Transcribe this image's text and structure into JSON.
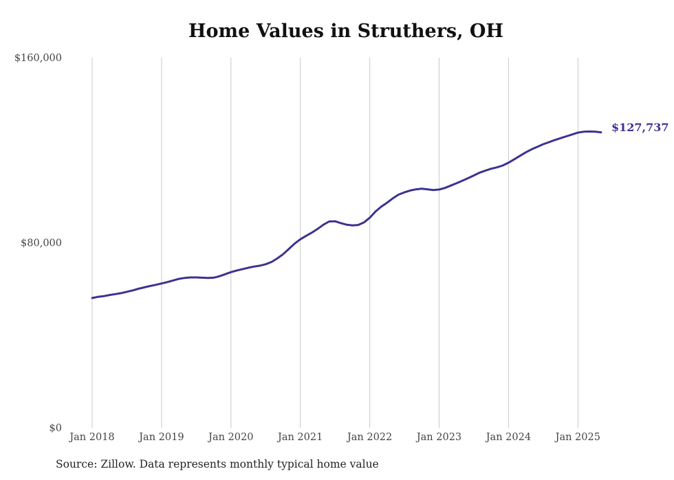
{
  "title": "Home Values in Struthers, OH",
  "source": "Source: Zillow. Data represents monthly typical home value",
  "colors": {
    "line": "#3b3291",
    "grid": "#c8c8c8",
    "text": "#444444"
  },
  "chart_data": {
    "type": "line",
    "title": "Home Values in Struthers, OH",
    "xlabel": "",
    "ylabel": "",
    "ylim": [
      0,
      160000
    ],
    "xlim": [
      "2018-01",
      "2025-05"
    ],
    "yticks": [
      "$0",
      "$80,000",
      "$160,000"
    ],
    "xticks": [
      "Jan 2018",
      "Jan 2019",
      "Jan 2020",
      "Jan 2021",
      "Jan 2022",
      "Jan 2023",
      "Jan 2024",
      "Jan 2025"
    ],
    "grid": "vertical",
    "end_label": "$127,737",
    "series": [
      {
        "x": [
          "2018-01",
          "2018-02",
          "2018-03",
          "2018-04",
          "2018-05",
          "2018-06",
          "2018-07",
          "2018-08",
          "2018-09",
          "2018-10",
          "2018-11",
          "2018-12",
          "2019-01",
          "2019-02",
          "2019-03",
          "2019-04",
          "2019-05",
          "2019-06",
          "2019-07",
          "2019-08",
          "2019-09",
          "2019-10",
          "2019-11",
          "2019-12",
          "2020-01",
          "2020-02",
          "2020-03",
          "2020-04",
          "2020-05",
          "2020-06",
          "2020-07",
          "2020-08",
          "2020-09",
          "2020-10",
          "2020-11",
          "2020-12",
          "2021-01",
          "2021-02",
          "2021-03",
          "2021-04",
          "2021-05",
          "2021-06",
          "2021-07",
          "2021-08",
          "2021-09",
          "2021-10",
          "2021-11",
          "2021-12",
          "2022-01",
          "2022-02",
          "2022-03",
          "2022-04",
          "2022-05",
          "2022-06",
          "2022-07",
          "2022-08",
          "2022-09",
          "2022-10",
          "2022-11",
          "2022-12",
          "2023-01",
          "2023-02",
          "2023-03",
          "2023-04",
          "2023-05",
          "2023-06",
          "2023-07",
          "2023-08",
          "2023-09",
          "2023-10",
          "2023-11",
          "2023-12",
          "2024-01",
          "2024-02",
          "2024-03",
          "2024-04",
          "2024-05",
          "2024-06",
          "2024-07",
          "2024-08",
          "2024-09",
          "2024-10",
          "2024-11",
          "2024-12",
          "2025-01",
          "2025-02",
          "2025-03",
          "2025-04",
          "2025-05"
        ],
        "y": [
          56100,
          56600,
          56900,
          57400,
          57800,
          58200,
          58800,
          59400,
          60100,
          60700,
          61300,
          61800,
          62400,
          63000,
          63700,
          64400,
          64800,
          65000,
          65000,
          64900,
          64800,
          64900,
          65500,
          66400,
          67300,
          68000,
          68600,
          69200,
          69700,
          70100,
          70700,
          71700,
          73200,
          75000,
          77300,
          79600,
          81500,
          83000,
          84400,
          86000,
          87800,
          89200,
          89300,
          88500,
          87800,
          87500,
          87700,
          88800,
          90800,
          93500,
          95600,
          97300,
          99200,
          100800,
          101800,
          102600,
          103100,
          103400,
          103100,
          102800,
          103000,
          103700,
          104700,
          105700,
          106800,
          107900,
          109100,
          110300,
          111200,
          112000,
          112600,
          113400,
          114600,
          116100,
          117600,
          119100,
          120400,
          121500,
          122600,
          123500,
          124400,
          125200,
          126000,
          126800,
          127600,
          128000,
          128100,
          128000,
          127737
        ]
      }
    ]
  }
}
